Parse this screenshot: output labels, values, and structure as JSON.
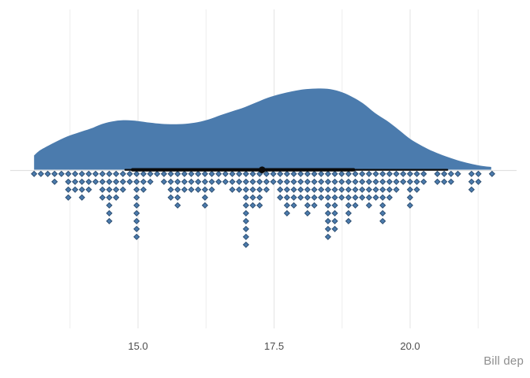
{
  "chart_data": {
    "type": "area",
    "subtype": "raincloud-halfeye-dotplot",
    "title": "",
    "xlabel": "Bill dep",
    "ylabel": "",
    "axis": {
      "x_major_ticks": [
        15.0,
        17.5,
        20.0
      ],
      "x_tick_labels": [
        "15.0",
        "17.5",
        "20.0"
      ],
      "x_minor_gridlines": [
        13.75,
        16.25,
        18.75,
        21.25
      ],
      "x_data_range": [
        13.1,
        21.5
      ],
      "grid": "vertical-only",
      "legend": "none"
    },
    "density_curve": {
      "comment_units": "pairs of [x value (bill depth), normalized density 0-1]",
      "points": [
        [
          13.09,
          0.176
        ],
        [
          13.17,
          0.225
        ],
        [
          13.26,
          0.263
        ],
        [
          13.48,
          0.341
        ],
        [
          13.7,
          0.41
        ],
        [
          13.91,
          0.459
        ],
        [
          14.13,
          0.507
        ],
        [
          14.35,
          0.566
        ],
        [
          14.57,
          0.6
        ],
        [
          14.78,
          0.61
        ],
        [
          15.0,
          0.6
        ],
        [
          15.22,
          0.58
        ],
        [
          15.43,
          0.566
        ],
        [
          15.65,
          0.561
        ],
        [
          15.87,
          0.566
        ],
        [
          16.09,
          0.585
        ],
        [
          16.3,
          0.62
        ],
        [
          16.52,
          0.673
        ],
        [
          16.74,
          0.722
        ],
        [
          16.96,
          0.771
        ],
        [
          17.17,
          0.829
        ],
        [
          17.39,
          0.888
        ],
        [
          17.61,
          0.932
        ],
        [
          17.83,
          0.966
        ],
        [
          18.04,
          0.99
        ],
        [
          18.26,
          1.0
        ],
        [
          18.48,
          0.997
        ],
        [
          18.7,
          0.966
        ],
        [
          18.91,
          0.907
        ],
        [
          19.13,
          0.82
        ],
        [
          19.35,
          0.702
        ],
        [
          19.57,
          0.605
        ],
        [
          19.78,
          0.498
        ],
        [
          20.0,
          0.38
        ],
        [
          20.22,
          0.293
        ],
        [
          20.43,
          0.224
        ],
        [
          20.65,
          0.166
        ],
        [
          20.87,
          0.117
        ],
        [
          21.09,
          0.078
        ],
        [
          21.3,
          0.049
        ],
        [
          21.49,
          0.034
        ]
      ]
    },
    "dotplot": {
      "bin_start": 13.09,
      "bin_step": 0.1256,
      "counts": [
        1,
        1,
        1,
        2,
        1,
        4,
        3,
        4,
        3,
        2,
        4,
        7,
        4,
        3,
        2,
        9,
        3,
        2,
        1,
        2,
        4,
        5,
        3,
        3,
        3,
        5,
        3,
        2,
        2,
        3,
        3,
        10,
        5,
        5,
        3,
        2,
        4,
        6,
        5,
        4,
        6,
        5,
        4,
        9,
        8,
        4,
        7,
        5,
        4,
        5,
        4,
        7,
        4,
        3,
        2,
        5,
        3,
        2,
        0,
        2,
        2,
        2,
        1,
        0,
        3,
        2,
        0,
        1
      ]
    },
    "interval": {
      "point_estimate": 17.28,
      "inner_interval": [
        14.87,
        18.99
      ],
      "outer_interval": [
        14.75,
        20.7
      ]
    },
    "colors": {
      "slab_fill": "#4b7bad",
      "dot_fill": "#4b7bad",
      "dot_stroke": "#2e4f72",
      "interval": "#0a0a0a",
      "grid_major": "#e3e3e3",
      "grid_minor": "#eeeeee",
      "baseline": "#e1e1e1",
      "tick_text": "#4d4d4d",
      "axis_title_text": "#8f8f8f",
      "background": "#ffffff"
    }
  }
}
